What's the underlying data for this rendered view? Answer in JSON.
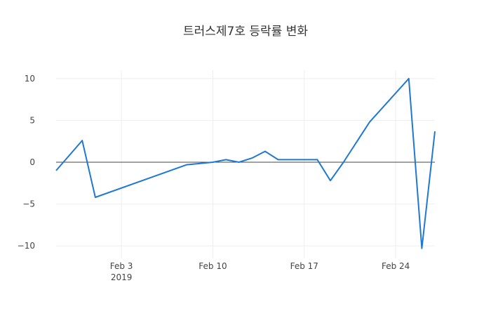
{
  "chart_data": {
    "type": "line",
    "title": "트러스제7호 등락률 변화",
    "xlabel": "",
    "ylabel": "",
    "x_axis": {
      "type": "date",
      "range": [
        "2019-01-29",
        "2019-02-27"
      ],
      "ticks": [
        {
          "date": "2019-02-03",
          "label": "Feb 3",
          "sublabel": "2019"
        },
        {
          "date": "2019-02-10",
          "label": "Feb 10",
          "sublabel": ""
        },
        {
          "date": "2019-02-17",
          "label": "Feb 17",
          "sublabel": ""
        },
        {
          "date": "2019-02-24",
          "label": "Feb 24",
          "sublabel": ""
        }
      ]
    },
    "y_axis": {
      "range": [
        -11.5,
        11
      ],
      "ticks": [
        {
          "value": 10,
          "label": "10"
        },
        {
          "value": 5,
          "label": "5"
        },
        {
          "value": 0,
          "label": "0"
        },
        {
          "value": -5,
          "label": "−5"
        },
        {
          "value": -10,
          "label": "−10"
        }
      ]
    },
    "grid": true,
    "zeroline": true,
    "color": "#1f78d1",
    "series": [
      {
        "name": "",
        "x": [
          "2019-01-29",
          "2019-01-31",
          "2019-02-01",
          "2019-02-08",
          "2019-02-10",
          "2019-02-11",
          "2019-02-12",
          "2019-02-13",
          "2019-02-14",
          "2019-02-15",
          "2019-02-18",
          "2019-02-19",
          "2019-02-20",
          "2019-02-22",
          "2019-02-25",
          "2019-02-26",
          "2019-02-27"
        ],
        "y": [
          -1.0,
          2.6,
          -4.2,
          -0.3,
          0.0,
          0.3,
          0.0,
          0.5,
          1.3,
          0.3,
          0.3,
          -2.2,
          0.0,
          4.8,
          10.0,
          -10.3,
          3.7
        ]
      }
    ]
  }
}
